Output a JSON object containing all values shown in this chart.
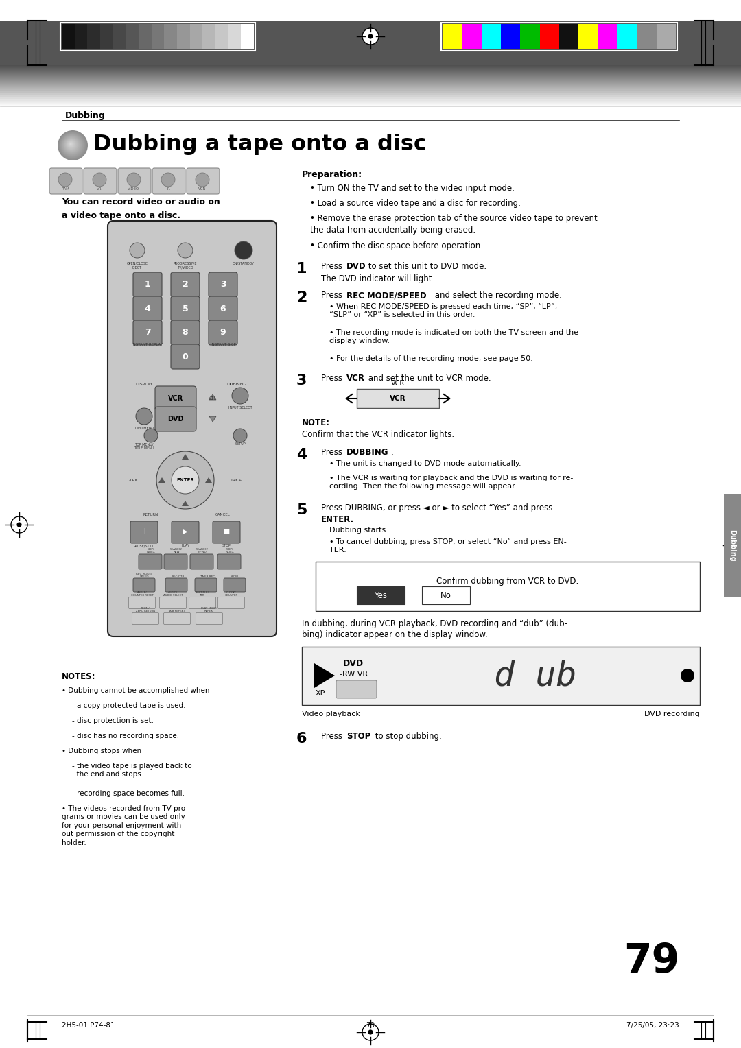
{
  "page_width": 10.8,
  "page_height": 15.28,
  "bg_color": "#ffffff",
  "header_label": "Dubbing",
  "title": "Dubbing a tape onto a disc",
  "subtitle": "You can record video or audio on\na video tape onto a disc.",
  "preparation_title": "Preparation:",
  "preparation_bullets": [
    "Turn ON the TV and set to the video input mode.",
    "Load a source video tape and a disc for recording.",
    "Remove the erase protection tab of the source video tape to prevent\nthe data from accidentally being erased.",
    "Confirm the disc space before operation."
  ],
  "step1_main": "Press DVD to set this unit to DVD mode.",
  "step1_sub": "The DVD indicator will light.",
  "step2_main": "Press REC MODE/SPEED and select the recording mode.",
  "step2_bullets": [
    "When REC MODE/SPEED is pressed each time, “SP”, “LP”,\n“SLP” or “XP” is selected in this order.",
    "The recording mode is indicated on both the TV screen and the\ndisplay window.",
    "For the details of the recording mode, see page 50."
  ],
  "step3_main": "Press VCR and set the unit to VCR mode.",
  "note_label": "NOTE:",
  "note_text": "Confirm that the VCR indicator lights.",
  "step4_main": "Press DUBBING.",
  "step4_bullets": [
    "The unit is changed to DVD mode automatically.",
    "The VCR is waiting for playback and the DVD is waiting for re-\ncording. Then the following message will appear."
  ],
  "step5_main": "Press DUBBING, or press ◄ or ► to select “Yes” and press",
  "step5_main2": "ENTER.",
  "step5_sub1": "Dubbing starts.",
  "step5_sub2": "To cancel dubbing, press STOP, or select “No” and press EN-\nTER.",
  "dialog_text": "Confirm dubbing from VCR to DVD.",
  "dubbing_intro": "In dubbing, during VCR playback, DVD recording and “dub” (dub-\nbing) indicator appear on the display window.",
  "display_label_left": "Video playback",
  "display_label_right": "DVD recording",
  "step6_main": "Press STOP to stop dubbing.",
  "notes_title": "NOTES:",
  "notes_bullets": [
    "Dubbing cannot be accomplished when",
    "- a copy protected tape is used.",
    "- disc protection is set.",
    "- disc has no recording space.",
    "Dubbing stops when",
    "- the video tape is played back to\nthe end and stops.",
    "- recording space becomes full.",
    "The videos recorded from TV pro-\ngrams or movies can be used only\nfor your personal enjoyment with-\nout permission of the copyright\nholder."
  ],
  "page_num": "79",
  "footer_left": "2H5-01 P74-81",
  "footer_center": "79",
  "footer_right": "7/25/05, 23:23",
  "side_tab_text": "Dubbing",
  "gray_bars": [
    "#111111",
    "#1e1e1e",
    "#2c2c2c",
    "#3a3a3a",
    "#484848",
    "#565656",
    "#686868",
    "#777777",
    "#878787",
    "#979797",
    "#a7a7a7",
    "#b7b7b7",
    "#c7c7c7",
    "#d8d8d8",
    "#ffffff"
  ],
  "color_bars": [
    "#ffff00",
    "#ff00ff",
    "#00ffff",
    "#0000ff",
    "#00bb00",
    "#ff0000",
    "#111111",
    "#ffff00",
    "#ff00ff",
    "#00ffff",
    "#888888",
    "#aaaaaa"
  ]
}
